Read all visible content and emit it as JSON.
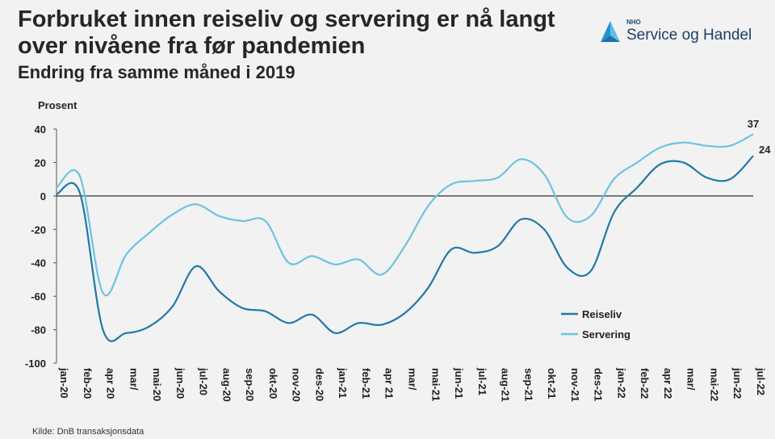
{
  "header": {
    "title": "Forbruket innen reiseliv og servering er nå langt over nivåene fra før pandemien",
    "subtitle": "Endring fra samme måned i 2019"
  },
  "logo": {
    "small": "NHO",
    "name": "Service og Handel"
  },
  "source": "Kilde: DnB transaksjonsdata",
  "colors": {
    "reiseliv": "#1f78a8",
    "servering": "#6cc4de",
    "zero_line": "#000000",
    "axis": "#555555"
  },
  "chart_data": {
    "type": "line",
    "title": "Forbruket innen reiseliv og servering er nå langt over nivåene fra før pandemien",
    "subtitle": "Endring fra samme måned i 2019",
    "ylabel": "Prosent",
    "xlabel": "",
    "ylim": [
      -100,
      40
    ],
    "yticks": [
      40,
      20,
      0,
      -20,
      -40,
      -60,
      -80,
      -100
    ],
    "categories": [
      "jan-20",
      "feb-20",
      "mar-20",
      "apr-20",
      "mai-20",
      "jun-20",
      "jul-20",
      "aug-20",
      "sep-20",
      "okt-20",
      "nov-20",
      "des-20",
      "jan-21",
      "feb-21",
      "mar-21",
      "apr-21",
      "mai-21",
      "jun-21",
      "jul-21",
      "aug-21",
      "sep-21",
      "okt-21",
      "nov-21",
      "des-21",
      "jan-22",
      "feb-22",
      "mar-22",
      "apr-22",
      "mai-22",
      "jun-22",
      "jul-22"
    ],
    "xtick_labels": [
      "jan-20",
      "feb-20",
      "apr 20",
      "mar/",
      "mai-20",
      "jun-20",
      "jul-20",
      "aug-20",
      "sep-20",
      "okt-20",
      "nov-20",
      "des-20",
      "jan-21",
      "feb-21",
      "apr 21",
      "mar/",
      "mai-21",
      "jun-21",
      "jul-21",
      "aug-21",
      "sep-21",
      "okt-21",
      "nov-21",
      "des-21",
      "jan-22",
      "feb-22",
      "apr 22",
      "mar/",
      "mai-22",
      "jun-22",
      "jul-22"
    ],
    "series": [
      {
        "name": "Reiseliv",
        "values": [
          1,
          2,
          -80,
          -82,
          -78,
          -66,
          -42,
          -57,
          -67,
          -69,
          -76,
          -71,
          -82,
          -76,
          -77,
          -70,
          -55,
          -32,
          -34,
          -30,
          -14,
          -20,
          -43,
          -45,
          -10,
          5,
          19,
          20,
          11,
          10,
          24
        ]
      },
      {
        "name": "Servering",
        "values": [
          5,
          12,
          -58,
          -35,
          -22,
          -11,
          -5,
          -12,
          -15,
          -15,
          -40,
          -36,
          -41,
          -38,
          -47,
          -30,
          -6,
          7,
          9,
          11,
          22,
          13,
          -13,
          -12,
          10,
          20,
          29,
          32,
          30,
          30,
          37
        ]
      }
    ],
    "end_labels": [
      {
        "series": "Servering",
        "value": "37"
      },
      {
        "series": "Reiseliv",
        "value": "24"
      }
    ],
    "legend": [
      "Reiseliv",
      "Servering"
    ],
    "grid": false
  }
}
